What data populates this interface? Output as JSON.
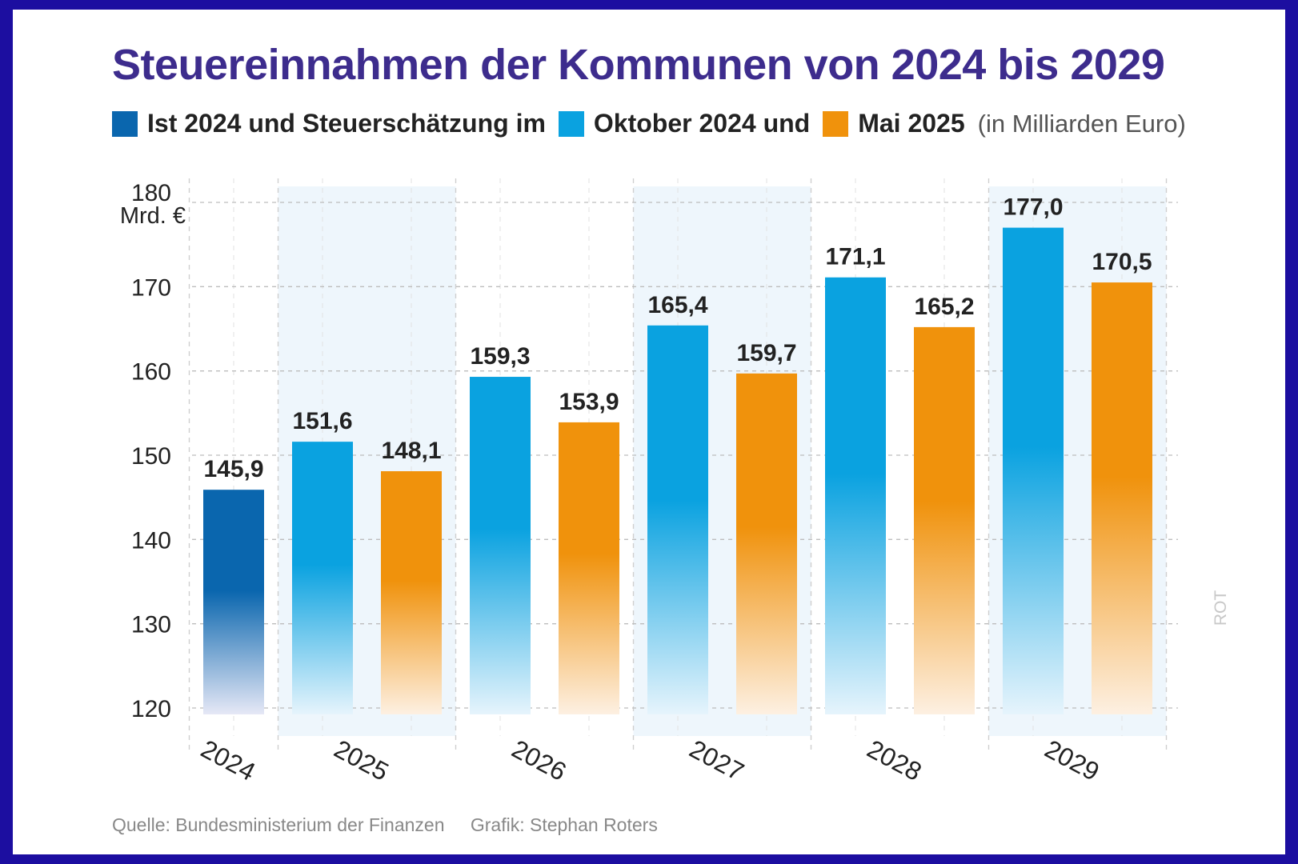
{
  "chart_data": {
    "type": "bar",
    "title": "Steuereinnahmen der Kommunen von 2024 bis 2029",
    "unit_note": "(in Milliarden Euro)",
    "ylabel": "Mrd. €",
    "ylim": [
      115,
      180
    ],
    "yticks": [
      120,
      130,
      140,
      150,
      160,
      170,
      180
    ],
    "categories": [
      "2024",
      "2025",
      "2026",
      "2027",
      "2028",
      "2029"
    ],
    "series": [
      {
        "name": "Ist 2024 und Steuerschätzung im",
        "color": "#0a66ae",
        "values": [
          145.9,
          null,
          null,
          null,
          null,
          null
        ]
      },
      {
        "name": "Oktober 2024 und",
        "color": "#0aa2e0",
        "values": [
          null,
          151.6,
          159.3,
          165.4,
          171.1,
          177.0
        ]
      },
      {
        "name": "Mai 2025",
        "color": "#f0920c",
        "values": [
          null,
          148.1,
          153.9,
          159.7,
          165.2,
          170.5
        ]
      }
    ],
    "bars": [
      {
        "category": "2024",
        "series": 0,
        "value": 145.9,
        "label": "145,9"
      },
      {
        "category": "2025",
        "series": 1,
        "value": 151.6,
        "label": "151,6"
      },
      {
        "category": "2025",
        "series": 2,
        "value": 148.1,
        "label": "148,1"
      },
      {
        "category": "2026",
        "series": 1,
        "value": 159.3,
        "label": "159,3"
      },
      {
        "category": "2026",
        "series": 2,
        "value": 153.9,
        "label": "153,9"
      },
      {
        "category": "2027",
        "series": 1,
        "value": 165.4,
        "label": "165,4"
      },
      {
        "category": "2027",
        "series": 2,
        "value": 159.7,
        "label": "159,7"
      },
      {
        "category": "2028",
        "series": 1,
        "value": 171.1,
        "label": "171,1"
      },
      {
        "category": "2028",
        "series": 2,
        "value": 165.2,
        "label": "165,2"
      },
      {
        "category": "2029",
        "series": 1,
        "value": 177.0,
        "label": "177,0"
      },
      {
        "category": "2029",
        "series": 2,
        "value": 170.5,
        "label": "170,5"
      }
    ],
    "watermark": "ROT",
    "grid": true
  },
  "footer": {
    "source": "Quelle: Bundesministerium der Finanzen",
    "credit": "Grafik: Stephan Roters"
  }
}
